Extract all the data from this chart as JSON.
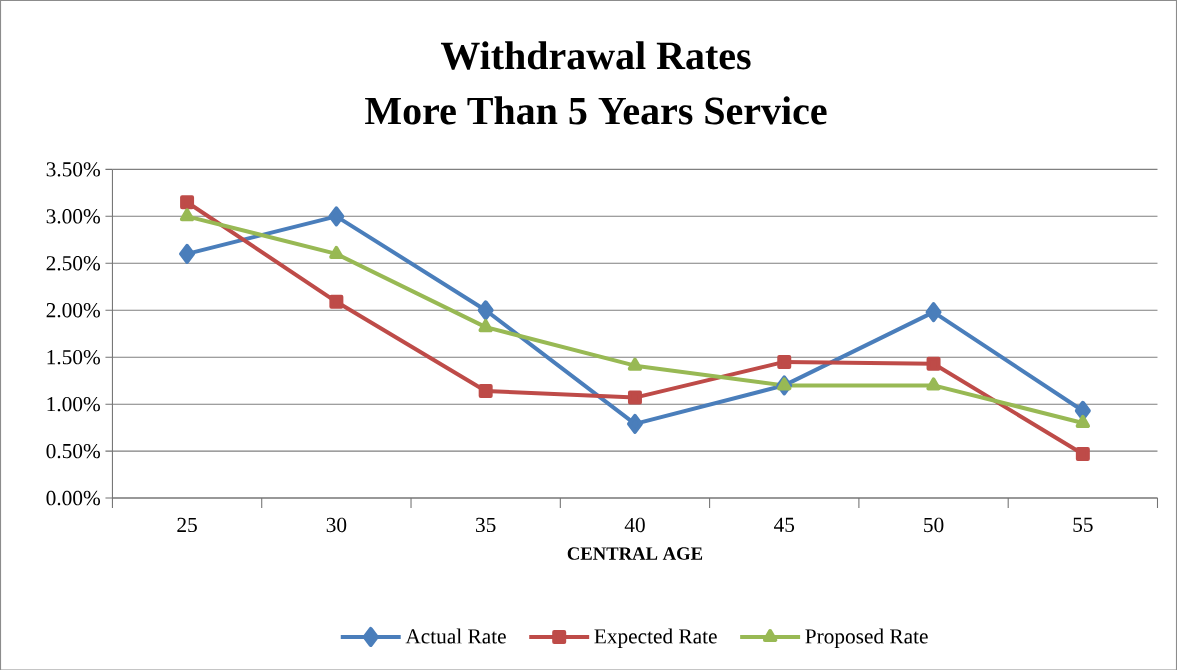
{
  "chart_data": {
    "type": "line",
    "title": "Withdrawal Rates",
    "subtitle": "More Than 5 Years Service",
    "xlabel": "CENTRAL  AGE",
    "categories": [
      "25",
      "30",
      "35",
      "40",
      "45",
      "50",
      "55"
    ],
    "series": [
      {
        "name": "Actual Rate",
        "color": "#4a7ebb",
        "marker": "diamond",
        "values": [
          2.6,
          3.0,
          2.0,
          0.79,
          1.2,
          1.98,
          0.93
        ]
      },
      {
        "name": "Expected Rate",
        "color": "#be4b48",
        "marker": "square",
        "values": [
          3.15,
          2.09,
          1.14,
          1.07,
          1.45,
          1.43,
          0.47
        ]
      },
      {
        "name": "Proposed Rate",
        "color": "#98b954",
        "marker": "triangle",
        "values": [
          3.0,
          2.6,
          1.82,
          1.41,
          1.2,
          1.2,
          0.8
        ]
      }
    ],
    "ylim": [
      0,
      3.5
    ],
    "yticks": [
      {
        "value": 0,
        "label": "0.00%"
      },
      {
        "value": 0.5,
        "label": "0.50%"
      },
      {
        "value": 1,
        "label": "1.00%"
      },
      {
        "value": 1.5,
        "label": "1.50%"
      },
      {
        "value": 2,
        "label": "2.00%"
      },
      {
        "value": 2.5,
        "label": "2.50%"
      },
      {
        "value": 3,
        "label": "3.00%"
      },
      {
        "value": 3.5,
        "label": "3.50%"
      }
    ],
    "grid": "y",
    "legend": "bottom",
    "line_style": "solid"
  }
}
